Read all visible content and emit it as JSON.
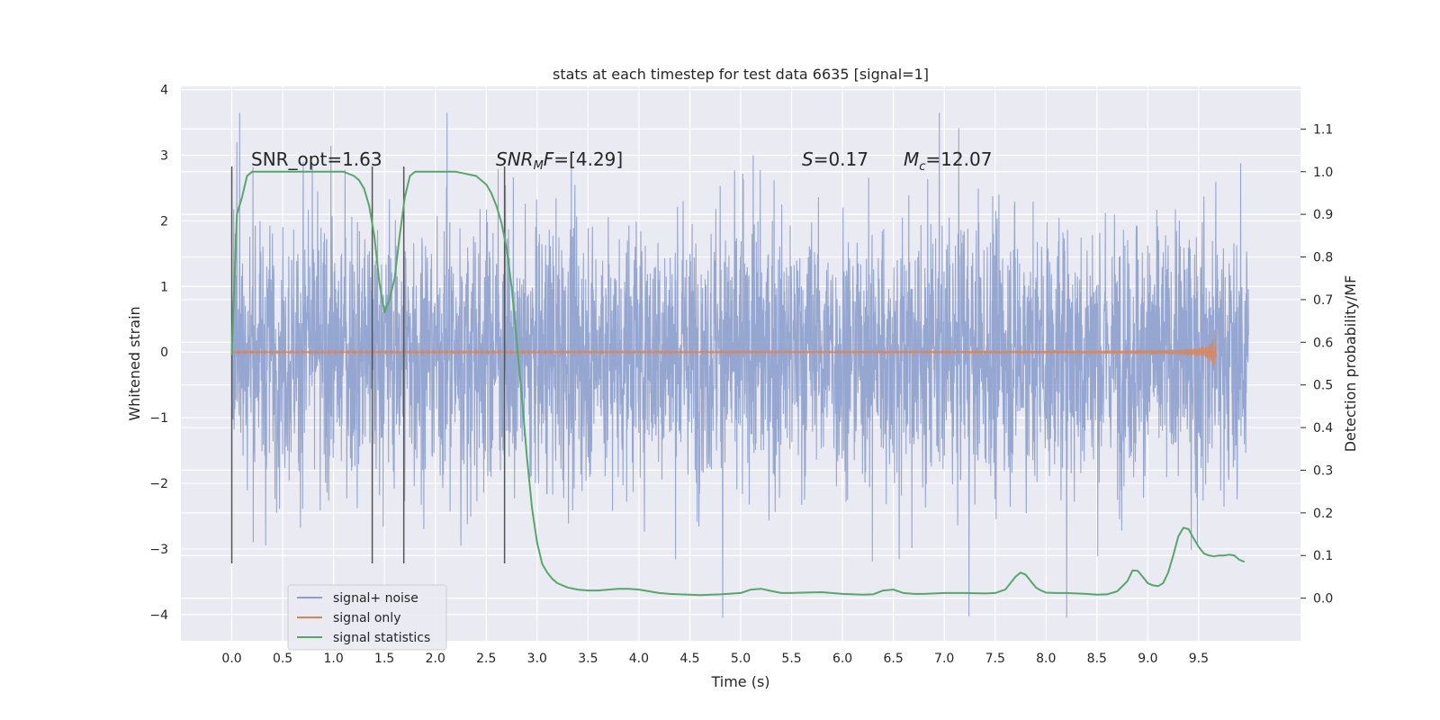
{
  "chart_data": {
    "type": "line",
    "title": "stats at each timestep for test data 6635 [signal=1]",
    "xlabel": "Time (s)",
    "ylabel": "Whitened strain",
    "ylabel_right": "Detection probability/MF",
    "xlim": [
      -0.5,
      10.5
    ],
    "ylim": [
      -4.4,
      4.05
    ],
    "ylim_right": [
      -0.1,
      1.2
    ],
    "x_ticks": [
      "0.0",
      "0.5",
      "1.0",
      "1.5",
      "2.0",
      "2.5",
      "3.0",
      "3.5",
      "4.0",
      "4.5",
      "5.0",
      "5.5",
      "6.0",
      "6.5",
      "7.0",
      "7.5",
      "8.0",
      "8.5",
      "9.0",
      "9.5"
    ],
    "y_ticks": [
      "4",
      "3",
      "2",
      "1",
      "0",
      "−1",
      "−2",
      "−3",
      "−4"
    ],
    "y_right_ticks": [
      "1.1",
      "1.0",
      "0.9",
      "0.8",
      "0.7",
      "0.6",
      "0.5",
      "0.4",
      "0.3",
      "0.2",
      "0.1",
      "0.0"
    ],
    "grid": true,
    "legend_position": "bottom-left",
    "legend": [
      "signal+ noise",
      "signal only",
      "signal statistics"
    ],
    "annotations": {
      "snr_opt": "SNR_opt=1.63",
      "snr_mf": "[4.29]",
      "s_value": "=0.17",
      "mc_value": "=12.07"
    },
    "colors": {
      "noise": "#8c9fcc",
      "signal": "#dd8452",
      "statistics": "#55a868",
      "vlines": "#555555",
      "background": "#eaeaf2"
    },
    "vertical_lines_x": [
      0.0,
      1.38,
      1.69,
      2.68
    ],
    "noise_summary": {
      "x_range": [
        0.0,
        9.99
      ],
      "min": -4.05,
      "max": 3.65
    },
    "signal_only": {
      "x_range": [
        0.0,
        9.67
      ],
      "peak_amplitude": 0.35,
      "peak_x": 9.65
    },
    "series": [
      {
        "name": "signal statistics",
        "axis": "right",
        "x": [
          0.0,
          0.05,
          0.1,
          0.15,
          0.2,
          0.3,
          0.5,
          0.7,
          0.9,
          1.1,
          1.2,
          1.25,
          1.3,
          1.35,
          1.4,
          1.45,
          1.5,
          1.55,
          1.6,
          1.65,
          1.7,
          1.75,
          1.8,
          1.9,
          2.0,
          2.2,
          2.4,
          2.5,
          2.55,
          2.6,
          2.65,
          2.7,
          2.75,
          2.8,
          2.85,
          2.9,
          2.95,
          3.0,
          3.05,
          3.1,
          3.15,
          3.2,
          3.3,
          3.4,
          3.5,
          3.6,
          3.7,
          3.8,
          3.9,
          4.0,
          4.1,
          4.2,
          4.3,
          4.4,
          4.5,
          4.6,
          4.8,
          5.0,
          5.1,
          5.2,
          5.3,
          5.4,
          5.5,
          5.6,
          5.8,
          6.0,
          6.2,
          6.3,
          6.4,
          6.5,
          6.6,
          6.7,
          6.8,
          7.0,
          7.2,
          7.4,
          7.5,
          7.6,
          7.65,
          7.7,
          7.75,
          7.8,
          7.85,
          7.9,
          7.95,
          8.0,
          8.1,
          8.2,
          8.3,
          8.4,
          8.5,
          8.6,
          8.7,
          8.8,
          8.85,
          8.9,
          8.95,
          9.0,
          9.05,
          9.1,
          9.15,
          9.2,
          9.25,
          9.3,
          9.35,
          9.4,
          9.45,
          9.5,
          9.55,
          9.6,
          9.65,
          9.7,
          9.75,
          9.8,
          9.85,
          9.9,
          9.95
        ],
        "values": [
          0.57,
          0.9,
          0.94,
          0.99,
          1.0,
          1.0,
          1.0,
          1.0,
          1.0,
          1.0,
          0.99,
          0.98,
          0.96,
          0.92,
          0.85,
          0.74,
          0.67,
          0.7,
          0.75,
          0.85,
          0.94,
          0.99,
          1.0,
          1.0,
          1.0,
          1.0,
          0.99,
          0.97,
          0.95,
          0.92,
          0.88,
          0.82,
          0.73,
          0.6,
          0.47,
          0.33,
          0.21,
          0.13,
          0.08,
          0.06,
          0.045,
          0.035,
          0.025,
          0.02,
          0.018,
          0.018,
          0.02,
          0.022,
          0.022,
          0.02,
          0.016,
          0.012,
          0.01,
          0.009,
          0.008,
          0.007,
          0.009,
          0.012,
          0.02,
          0.022,
          0.017,
          0.012,
          0.012,
          0.013,
          0.014,
          0.01,
          0.008,
          0.009,
          0.018,
          0.02,
          0.012,
          0.01,
          0.01,
          0.012,
          0.012,
          0.011,
          0.012,
          0.02,
          0.035,
          0.05,
          0.06,
          0.055,
          0.04,
          0.025,
          0.018,
          0.013,
          0.012,
          0.012,
          0.011,
          0.01,
          0.008,
          0.009,
          0.016,
          0.04,
          0.065,
          0.064,
          0.05,
          0.035,
          0.03,
          0.028,
          0.035,
          0.06,
          0.1,
          0.145,
          0.165,
          0.162,
          0.14,
          0.12,
          0.105,
          0.1,
          0.098,
          0.1,
          0.1,
          0.102,
          0.1,
          0.09,
          0.085
        ]
      }
    ]
  }
}
